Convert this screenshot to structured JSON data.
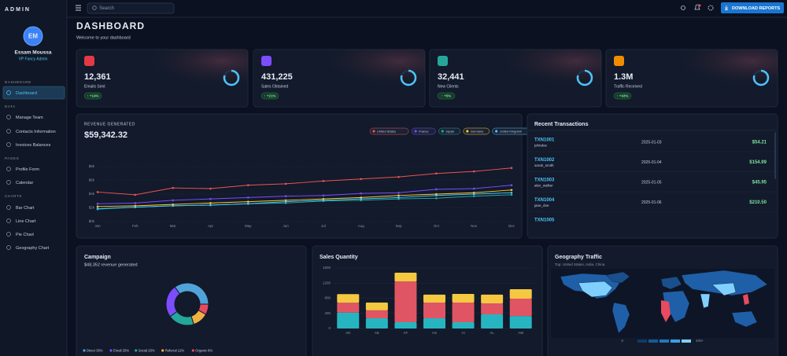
{
  "sidebar": {
    "brand": "ADMIN",
    "initials": "EM",
    "name": "Essam Moussa",
    "role": "VP Fancy Admin",
    "sections": [
      {
        "title": "DASHBOARD",
        "items": [
          "Dashboard"
        ]
      },
      {
        "title": "DATA",
        "items": [
          "Manage Team",
          "Contacts Information",
          "Invoices Balances"
        ]
      },
      {
        "title": "PAGES",
        "items": [
          "Profile Form",
          "Calendar"
        ]
      },
      {
        "title": "CHARTS",
        "items": [
          "Bar Chart",
          "Line Chart",
          "Pie Chart",
          "Geography Chart"
        ]
      }
    ]
  },
  "topbar": {
    "search": "Search",
    "button": "DOWNLOAD REPORTS"
  },
  "header": {
    "title": "DASHBOARD",
    "subtitle": "Welcome to your dashboard"
  },
  "stats": [
    {
      "value": "12,361",
      "label": "Emails Sent",
      "change": "↑ +14%"
    },
    {
      "value": "431,225",
      "label": "Sales Obtained",
      "change": "↑ +21%"
    },
    {
      "value": "32,441",
      "label": "New Clients",
      "change": "↑ +5%"
    },
    {
      "value": "1.3M",
      "label": "Traffic Received",
      "change": "↑ +43%"
    }
  ],
  "transactions": {
    "title": "Recent Transactions",
    "rows": [
      [
        "TXN1001",
        "johndoe",
        "2025-01-03",
        "$54.21"
      ],
      [
        "TXN1002",
        "sarah_smith",
        "2025-01-04",
        "$154.99"
      ],
      [
        "TXN1003",
        "alex_walker",
        "2025-01-05",
        "$45.95"
      ],
      [
        "TXN1004",
        "jane_doe",
        "2025-01-06",
        "$210.50"
      ],
      [
        "TXN1005"
      ]
    ]
  },
  "geography": {
    "title": "Geography Traffic",
    "subtitle": "Top: United States, India, China",
    "legend_min": "0",
    "legend_max": "400+"
  },
  "chart_data": [
    {
      "type": "line",
      "title": "REVENUE GENERATED",
      "subtitle": "$59,342.32",
      "categories": [
        "Jan",
        "Feb",
        "Mar",
        "Apr",
        "May",
        "Jun",
        "Jul",
        "Aug",
        "Sep",
        "Oct",
        "Nov",
        "Dec"
      ],
      "ylim": [
        0,
        8
      ],
      "yticks": [
        {
          "value": 0,
          "label": "$0k"
        },
        {
          "value": 2,
          "label": "$2k"
        },
        {
          "value": 4,
          "label": "$4k"
        },
        {
          "value": 6,
          "label": "$6k"
        },
        {
          "value": 8,
          "label": "$8k"
        }
      ],
      "grid": true,
      "series": [
        {
          "name": "United States",
          "color": "#ef5350",
          "values": [
            4.3,
            3.9,
            4.9,
            4.8,
            5.3,
            5.5,
            5.9,
            6.2,
            6.5,
            7.0,
            7.3,
            7.8
          ]
        },
        {
          "name": "France",
          "color": "#7c4dff",
          "values": [
            2.6,
            2.7,
            3.1,
            3.3,
            3.5,
            3.7,
            3.8,
            4.1,
            4.2,
            4.7,
            4.8,
            5.3
          ]
        },
        {
          "name": "Japan",
          "color": "#26a69a",
          "values": [
            1.8,
            2.1,
            2.3,
            2.4,
            2.6,
            2.7,
            3.0,
            3.1,
            3.3,
            3.4,
            3.7,
            3.9
          ]
        },
        {
          "name": "Germany",
          "color": "#ffca28",
          "values": [
            2.2,
            2.3,
            2.5,
            2.7,
            2.9,
            3.1,
            3.3,
            3.5,
            3.8,
            4.0,
            4.2,
            4.6
          ]
        },
        {
          "name": "United Kingdom",
          "color": "#4fc3f7",
          "values": [
            1.9,
            2.1,
            2.3,
            2.4,
            2.6,
            2.9,
            3.1,
            3.3,
            3.5,
            3.8,
            4.0,
            4.2
          ]
        }
      ]
    },
    {
      "type": "pie",
      "title": "Campaign",
      "subtitle": "$48,352 revenue generated",
      "categories": [
        "Direct",
        "Email",
        "Social",
        "Referral",
        "Organic"
      ],
      "values": [
        35,
        25,
        20,
        12,
        8
      ],
      "value_labels": [
        "35%",
        "25%",
        "20%",
        "12%",
        "8%"
      ],
      "colors": [
        "#4fa3d9",
        "#7c4dff",
        "#26a69a",
        "#f0b040",
        "#e84a5f"
      ]
    },
    {
      "type": "bar",
      "title": "Sales Quantity",
      "categories": [
        "AD",
        "AE",
        "AF",
        "AG",
        "AI",
        "AL",
        "AM"
      ],
      "ylim": [
        0,
        1600
      ],
      "yticks": [
        0,
        400,
        800,
        1200,
        1600
      ],
      "stacked": true,
      "series": [
        {
          "color": "#26b5c0",
          "values": [
            420,
            270,
            165,
            270,
            165,
            375,
            330
          ]
        },
        {
          "color": "#e05563",
          "values": [
            260,
            210,
            1080,
            415,
            520,
            290,
            460
          ]
        },
        {
          "color": "#f5c842",
          "values": [
            230,
            205,
            230,
            210,
            230,
            230,
            250
          ]
        }
      ]
    }
  ]
}
